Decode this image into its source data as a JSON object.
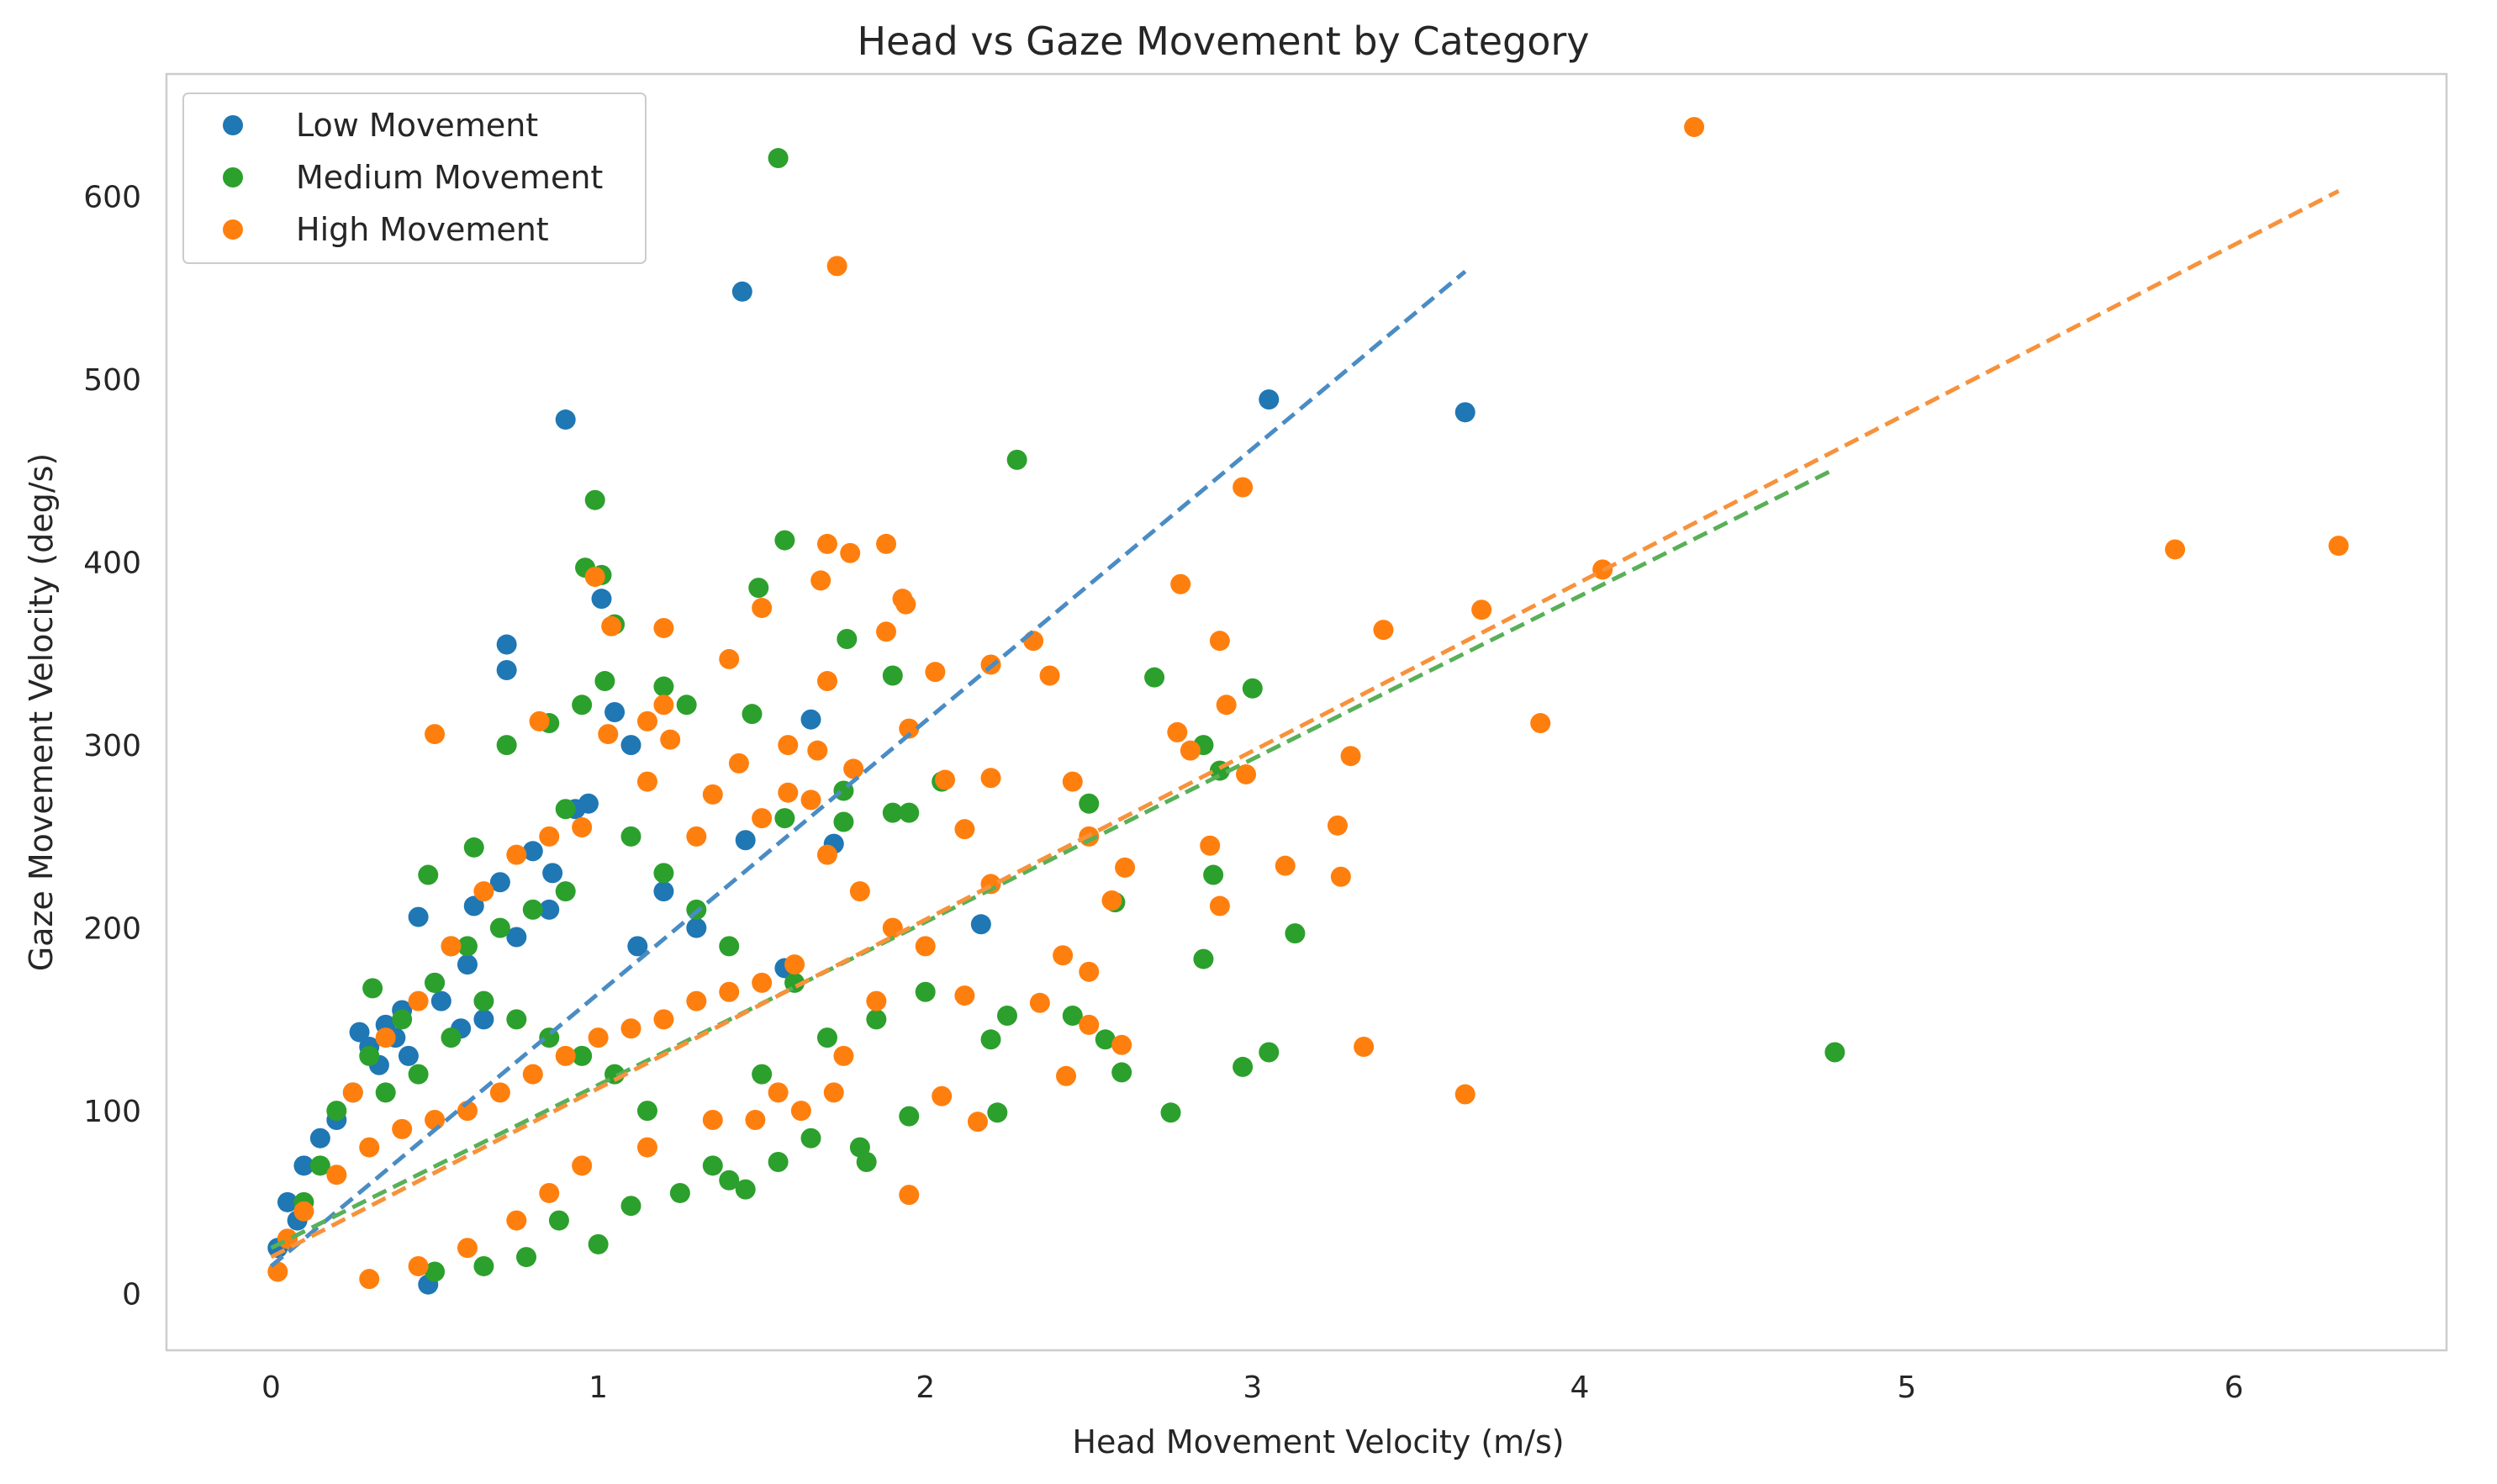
{
  "chart_data": {
    "type": "scatter",
    "title": "Head vs Gaze Movement by Category",
    "xlabel": "Head Movement Velocity (m/s)",
    "ylabel": "Gaze Movement Velocity (deg/s)",
    "xlim": [
      -0.32,
      6.65
    ],
    "ylim": [
      -31,
      667
    ],
    "xticks": [
      0,
      1,
      2,
      3,
      4,
      5,
      6
    ],
    "yticks": [
      0,
      100,
      200,
      300,
      400,
      500,
      600
    ],
    "grid": false,
    "legend_position": "upper left",
    "series": [
      {
        "name": "Low Movement",
        "color": "#1f77b4",
        "points": [
          [
            0.9,
            478
          ],
          [
            1.44,
            548
          ],
          [
            3.05,
            489
          ],
          [
            3.65,
            482
          ],
          [
            0.72,
            355
          ],
          [
            0.72,
            341
          ],
          [
            1.01,
            380
          ],
          [
            1.05,
            318
          ],
          [
            1.1,
            300
          ],
          [
            1.65,
            314
          ],
          [
            1.72,
            246
          ],
          [
            2.17,
            202
          ],
          [
            0.93,
            265
          ],
          [
            0.97,
            268
          ],
          [
            0.45,
            206
          ],
          [
            0.86,
            230
          ],
          [
            1.45,
            248
          ],
          [
            0.27,
            143
          ],
          [
            0.3,
            135
          ],
          [
            0.35,
            147
          ],
          [
            0.4,
            155
          ],
          [
            0.55,
            190
          ],
          [
            0.62,
            212
          ],
          [
            0.7,
            225
          ],
          [
            0.8,
            242
          ],
          [
            1.2,
            220
          ],
          [
            1.3,
            200
          ],
          [
            1.57,
            178
          ],
          [
            0.05,
            50
          ],
          [
            0.1,
            70
          ],
          [
            0.15,
            85
          ],
          [
            0.2,
            95
          ],
          [
            0.25,
            110
          ],
          [
            0.02,
            25
          ],
          [
            0.08,
            40
          ],
          [
            0.48,
            5
          ],
          [
            0.33,
            125
          ],
          [
            0.5,
            170
          ],
          [
            0.6,
            180
          ],
          [
            0.65,
            150
          ],
          [
            0.38,
            140
          ],
          [
            0.52,
            160
          ],
          [
            0.75,
            195
          ],
          [
            0.85,
            210
          ],
          [
            1.12,
            190
          ],
          [
            0.42,
            130
          ],
          [
            0.58,
            145
          ]
        ]
      },
      {
        "name": "Medium Movement",
        "color": "#2ca02c",
        "points": [
          [
            1.55,
            621
          ],
          [
            2.28,
            456
          ],
          [
            0.99,
            434
          ],
          [
            1.57,
            412
          ],
          [
            0.96,
            397
          ],
          [
            1.01,
            393
          ],
          [
            1.49,
            386
          ],
          [
            1.05,
            366
          ],
          [
            1.76,
            358
          ],
          [
            1.9,
            338
          ],
          [
            2.7,
            337
          ],
          [
            1.02,
            335
          ],
          [
            1.2,
            332
          ],
          [
            1.27,
            322
          ],
          [
            0.95,
            322
          ],
          [
            1.47,
            317
          ],
          [
            0.85,
            312
          ],
          [
            0.72,
            300
          ],
          [
            2.85,
            300
          ],
          [
            2.9,
            286
          ],
          [
            3.0,
            331
          ],
          [
            1.75,
            275
          ],
          [
            2.05,
            280
          ],
          [
            2.5,
            268
          ],
          [
            1.9,
            263
          ],
          [
            1.95,
            263
          ],
          [
            1.57,
            260
          ],
          [
            1.75,
            258
          ],
          [
            0.9,
            265
          ],
          [
            0.62,
            244
          ],
          [
            0.48,
            229
          ],
          [
            0.31,
            167
          ],
          [
            2.88,
            229
          ],
          [
            2.58,
            214
          ],
          [
            3.13,
            197
          ],
          [
            2.85,
            183
          ],
          [
            2.0,
            165
          ],
          [
            2.25,
            152
          ],
          [
            2.45,
            152
          ],
          [
            2.55,
            139
          ],
          [
            2.2,
            139
          ],
          [
            2.6,
            121
          ],
          [
            3.05,
            132
          ],
          [
            2.97,
            124
          ],
          [
            4.78,
            132
          ],
          [
            2.75,
            99
          ],
          [
            2.22,
            99
          ],
          [
            1.95,
            97
          ],
          [
            1.82,
            72
          ],
          [
            1.55,
            72
          ],
          [
            1.4,
            62
          ],
          [
            1.25,
            55
          ],
          [
            1.1,
            48
          ],
          [
            1.0,
            27
          ],
          [
            1.45,
            57
          ],
          [
            1.35,
            70
          ],
          [
            1.65,
            85
          ],
          [
            1.8,
            80
          ],
          [
            1.5,
            120
          ],
          [
            1.7,
            140
          ],
          [
            1.85,
            150
          ],
          [
            1.6,
            170
          ],
          [
            1.4,
            190
          ],
          [
            1.3,
            210
          ],
          [
            1.2,
            230
          ],
          [
            1.1,
            250
          ],
          [
            0.9,
            220
          ],
          [
            0.8,
            210
          ],
          [
            0.7,
            200
          ],
          [
            0.6,
            190
          ],
          [
            0.5,
            170
          ],
          [
            0.4,
            150
          ],
          [
            0.3,
            130
          ],
          [
            0.2,
            100
          ],
          [
            0.15,
            70
          ],
          [
            0.1,
            50
          ],
          [
            0.05,
            30
          ],
          [
            0.35,
            110
          ],
          [
            0.45,
            120
          ],
          [
            0.55,
            140
          ],
          [
            0.65,
            160
          ],
          [
            0.75,
            150
          ],
          [
            0.85,
            140
          ],
          [
            0.95,
            130
          ],
          [
            1.05,
            120
          ],
          [
            1.15,
            100
          ],
          [
            0.88,
            40
          ],
          [
            0.78,
            20
          ],
          [
            0.65,
            15
          ],
          [
            0.5,
            12
          ]
        ]
      },
      {
        "name": "High Movement",
        "color": "#ff7f0e",
        "points": [
          [
            4.35,
            638
          ],
          [
            1.73,
            562
          ],
          [
            2.97,
            441
          ],
          [
            1.7,
            410
          ],
          [
            1.88,
            410
          ],
          [
            1.77,
            405
          ],
          [
            4.07,
            396
          ],
          [
            5.82,
            407
          ],
          [
            6.32,
            409
          ],
          [
            0.99,
            392
          ],
          [
            2.78,
            388
          ],
          [
            1.68,
            390
          ],
          [
            1.93,
            380
          ],
          [
            1.94,
            377
          ],
          [
            1.5,
            375
          ],
          [
            3.7,
            374
          ],
          [
            1.04,
            365
          ],
          [
            1.2,
            364
          ],
          [
            1.88,
            362
          ],
          [
            3.4,
            363
          ],
          [
            2.9,
            357
          ],
          [
            2.33,
            357
          ],
          [
            1.4,
            347
          ],
          [
            2.2,
            344
          ],
          [
            2.03,
            340
          ],
          [
            2.38,
            338
          ],
          [
            1.7,
            335
          ],
          [
            2.92,
            322
          ],
          [
            1.2,
            322
          ],
          [
            0.82,
            313
          ],
          [
            1.15,
            313
          ],
          [
            1.95,
            309
          ],
          [
            0.5,
            306
          ],
          [
            2.77,
            307
          ],
          [
            3.88,
            312
          ],
          [
            1.22,
            303
          ],
          [
            1.03,
            306
          ],
          [
            1.58,
            300
          ],
          [
            1.67,
            297
          ],
          [
            2.81,
            297
          ],
          [
            2.98,
            284
          ],
          [
            3.3,
            294
          ],
          [
            1.43,
            290
          ],
          [
            1.78,
            287
          ],
          [
            2.2,
            282
          ],
          [
            2.45,
            280
          ],
          [
            2.06,
            281
          ],
          [
            1.15,
            280
          ],
          [
            1.58,
            274
          ],
          [
            1.35,
            273
          ],
          [
            2.87,
            245
          ],
          [
            3.26,
            256
          ],
          [
            2.12,
            254
          ],
          [
            2.61,
            233
          ],
          [
            3.1,
            234
          ],
          [
            3.27,
            228
          ],
          [
            2.5,
            250
          ],
          [
            2.2,
            224
          ],
          [
            2.57,
            215
          ],
          [
            2.9,
            212
          ],
          [
            2.42,
            185
          ],
          [
            2.5,
            176
          ],
          [
            2.12,
            163
          ],
          [
            2.35,
            159
          ],
          [
            2.5,
            147
          ],
          [
            2.6,
            136
          ],
          [
            3.34,
            135
          ],
          [
            2.43,
            119
          ],
          [
            2.05,
            108
          ],
          [
            2.16,
            94
          ],
          [
            1.95,
            54
          ],
          [
            3.65,
            109
          ],
          [
            1.7,
            240
          ],
          [
            1.8,
            220
          ],
          [
            1.9,
            200
          ],
          [
            2.0,
            190
          ],
          [
            1.6,
            180
          ],
          [
            1.5,
            170
          ],
          [
            1.4,
            165
          ],
          [
            1.3,
            160
          ],
          [
            1.2,
            150
          ],
          [
            1.1,
            145
          ],
          [
            1.0,
            140
          ],
          [
            0.9,
            130
          ],
          [
            0.8,
            120
          ],
          [
            0.7,
            110
          ],
          [
            0.6,
            100
          ],
          [
            0.5,
            95
          ],
          [
            0.4,
            90
          ],
          [
            0.3,
            80
          ],
          [
            0.2,
            65
          ],
          [
            0.1,
            45
          ],
          [
            0.05,
            30
          ],
          [
            0.02,
            12
          ],
          [
            0.25,
            110
          ],
          [
            0.35,
            140
          ],
          [
            0.45,
            160
          ],
          [
            0.55,
            190
          ],
          [
            0.65,
            220
          ],
          [
            0.75,
            240
          ],
          [
            0.85,
            250
          ],
          [
            0.95,
            255
          ],
          [
            1.3,
            250
          ],
          [
            1.5,
            260
          ],
          [
            1.65,
            270
          ],
          [
            1.85,
            160
          ],
          [
            1.75,
            130
          ],
          [
            1.55,
            110
          ],
          [
            1.35,
            95
          ],
          [
            1.15,
            80
          ],
          [
            0.95,
            70
          ],
          [
            0.85,
            55
          ],
          [
            0.75,
            40
          ],
          [
            0.6,
            25
          ],
          [
            0.45,
            15
          ],
          [
            0.3,
            8
          ],
          [
            1.48,
            95
          ],
          [
            1.62,
            100
          ],
          [
            1.72,
            110
          ]
        ]
      }
    ],
    "trendlines": [
      {
        "series": "Low Movement",
        "color": "#4a8cc4",
        "x": [
          0.0,
          3.65
        ],
        "y": [
          15,
          559
        ]
      },
      {
        "series": "Medium Movement",
        "color": "#58b058",
        "x": [
          0.0,
          4.78
        ],
        "y": [
          25,
          451
        ]
      },
      {
        "series": "High Movement",
        "color": "#f7923c",
        "x": [
          0.0,
          6.32
        ],
        "y": [
          20,
          603
        ]
      }
    ]
  }
}
